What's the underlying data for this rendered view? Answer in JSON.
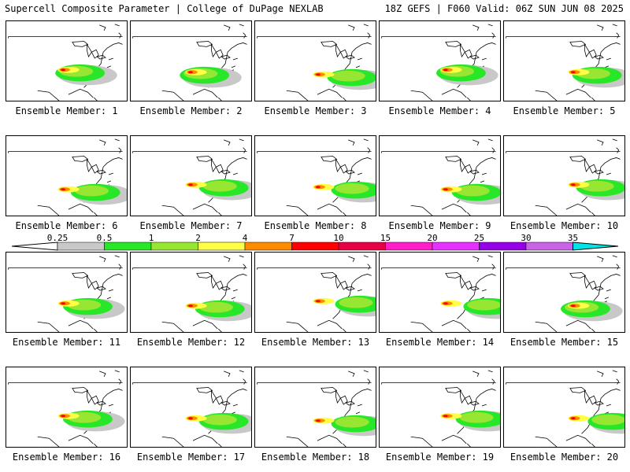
{
  "header": {
    "left": "Supercell Composite Parameter | College of DuPage NEXLAB",
    "right": "18Z GEFS | F060 Valid: 06Z SUN JUN 08 2025"
  },
  "panels": [
    {
      "label": "Ensemble Member: 1"
    },
    {
      "label": "Ensemble Member: 2"
    },
    {
      "label": "Ensemble Member: 3"
    },
    {
      "label": "Ensemble Member: 4"
    },
    {
      "label": "Ensemble Member: 5"
    },
    {
      "label": "Ensemble Member: 6"
    },
    {
      "label": "Ensemble Member: 7"
    },
    {
      "label": "Ensemble Member: 8"
    },
    {
      "label": "Ensemble Member: 9"
    },
    {
      "label": "Ensemble Member: 10"
    },
    {
      "label": "Ensemble Member: 11"
    },
    {
      "label": "Ensemble Member: 12"
    },
    {
      "label": "Ensemble Member: 13"
    },
    {
      "label": "Ensemble Member: 14"
    },
    {
      "label": "Ensemble Member: 15"
    },
    {
      "label": "Ensemble Member: 16"
    },
    {
      "label": "Ensemble Member: 17"
    },
    {
      "label": "Ensemble Member: 18"
    },
    {
      "label": "Ensemble Member: 19"
    },
    {
      "label": "Ensemble Member: 20"
    }
  ],
  "colorbar": {
    "labels": [
      "0.25",
      "0.5",
      "1",
      "2",
      "4",
      "7",
      "10",
      "15",
      "20",
      "25",
      "30",
      "35"
    ],
    "colors": [
      "#c8c8c8",
      "#28e628",
      "#96e632",
      "#ffff46",
      "#ff8c00",
      "#ff0000",
      "#e60046",
      "#ff1ec8",
      "#e632ff",
      "#9600e6",
      "#c864e6",
      "#00e6e6"
    ]
  }
}
